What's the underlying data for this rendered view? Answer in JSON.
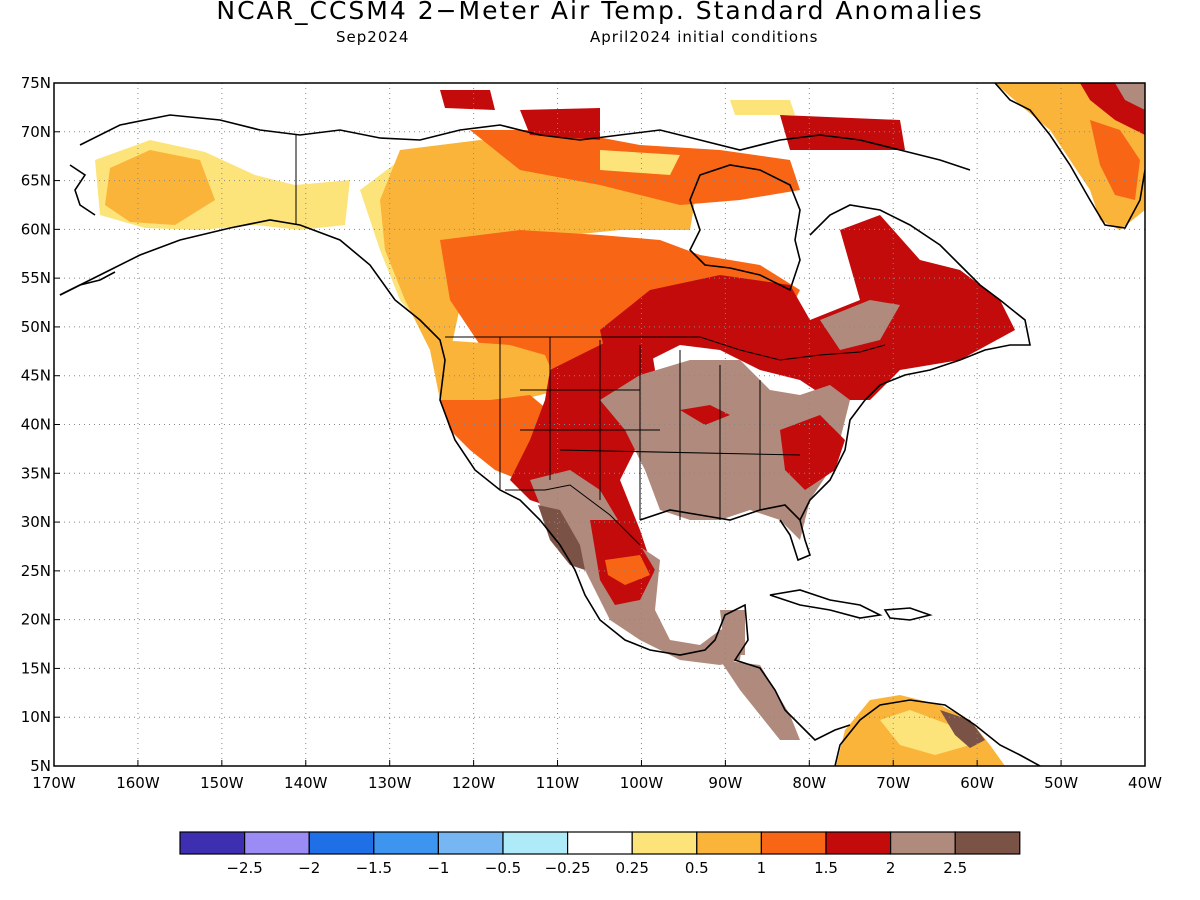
{
  "header": {
    "title": "NCAR_CCSM4 2−Meter Air Temp. Standard Anomalies",
    "target_month": "Sep2024",
    "initial_conditions": "April2024 initial conditions"
  },
  "map": {
    "lon_range": [
      -170,
      -40
    ],
    "lat_range": [
      5,
      75
    ],
    "lat_ticks": [
      "5N",
      "10N",
      "15N",
      "20N",
      "25N",
      "30N",
      "35N",
      "40N",
      "45N",
      "50N",
      "55N",
      "60N",
      "65N",
      "70N",
      "75N"
    ],
    "lon_ticks": [
      "170W",
      "160W",
      "150W",
      "140W",
      "130W",
      "120W",
      "110W",
      "100W",
      "90W",
      "80W",
      "70W",
      "60W",
      "50W",
      "40W"
    ],
    "grid": "dotted",
    "coastline_color": "#000000",
    "anomaly_regions": [
      {
        "name": "alaska-interior",
        "level": "0.25-0.5",
        "lon": [
          -162,
          -140
        ],
        "lat": [
          58,
          68
        ]
      },
      {
        "name": "western-canada",
        "level": "0.5-1",
        "lon": [
          -135,
          -105
        ],
        "lat": [
          50,
          68
        ]
      },
      {
        "name": "central-canada",
        "level": "1-1.5",
        "lon": [
          -115,
          -90
        ],
        "lat": [
          45,
          62
        ]
      },
      {
        "name": "great-plains-south",
        "level": "1.5-2",
        "lon": [
          -110,
          -95
        ],
        "lat": [
          30,
          45
        ]
      },
      {
        "name": "central-us",
        "level": "2-2.5",
        "lon": [
          -100,
          -80
        ],
        "lat": [
          28,
          45
        ]
      },
      {
        "name": "quebec-labrador",
        "level": "1.5-2",
        "lon": [
          -80,
          -57
        ],
        "lat": [
          45,
          62
        ]
      },
      {
        "name": "mexico",
        "level": "2-2.5",
        "lon": [
          -112,
          -90
        ],
        "lat": [
          15,
          30
        ]
      },
      {
        "name": "greenland-south",
        "level": "0.5-1.5",
        "lon": [
          -55,
          -40
        ],
        "lat": [
          60,
          75
        ]
      },
      {
        "name": "venezuela",
        "level": "0.25-2",
        "lon": [
          -75,
          -60
        ],
        "lat": [
          5,
          11
        ]
      }
    ]
  },
  "colorbar": {
    "colors": [
      "#3d2fb0",
      "#9b8cf5",
      "#1f6fe6",
      "#3d95f0",
      "#76b6f2",
      "#aeeaf7",
      "#ffffff",
      "#fde47a",
      "#fbb43a",
      "#f86514",
      "#c30b0b",
      "#b08a7c",
      "#7b5246"
    ],
    "labels": [
      "−2.5",
      "−2",
      "−1.5",
      "−1",
      "−0.5",
      "−0.25",
      "0.25",
      "0.5",
      "1",
      "1.5",
      "2",
      "2.5"
    ]
  }
}
